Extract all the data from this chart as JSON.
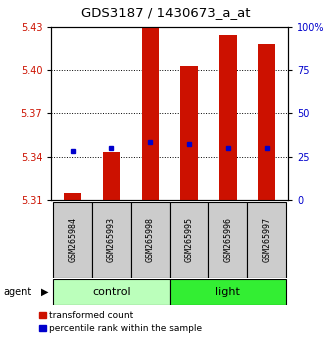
{
  "title": "GDS3187 / 1430673_a_at",
  "samples": [
    "GSM265984",
    "GSM265993",
    "GSM265998",
    "GSM265995",
    "GSM265996",
    "GSM265997"
  ],
  "group_control": {
    "name": "control",
    "color": "#bbffbb",
    "indices": [
      0,
      1,
      2
    ]
  },
  "group_light": {
    "name": "light",
    "color": "#33ee33",
    "indices": [
      3,
      4,
      5
    ]
  },
  "bar_bottom": 5.31,
  "bar_tops": [
    5.315,
    5.343,
    5.43,
    5.403,
    5.424,
    5.418
  ],
  "percentile_values": [
    5.344,
    5.346,
    5.35,
    5.349,
    5.346,
    5.346
  ],
  "ylim_left": [
    5.31,
    5.43
  ],
  "ylim_right": [
    0,
    100
  ],
  "yticks_left": [
    5.31,
    5.34,
    5.37,
    5.4,
    5.43
  ],
  "yticks_right": [
    0,
    25,
    50,
    75,
    100
  ],
  "ytick_right_labels": [
    "0",
    "25",
    "50",
    "75",
    "100%"
  ],
  "bar_color": "#cc1100",
  "blue_color": "#0000cc",
  "bar_width": 0.45,
  "agent_label": "agent",
  "label_transformed": "transformed count",
  "label_percentile": "percentile rank within the sample",
  "title_fontsize": 9.5,
  "tick_fontsize": 7,
  "sample_fontsize": 6,
  "group_label_fontsize": 8,
  "legend_fontsize": 6.5
}
